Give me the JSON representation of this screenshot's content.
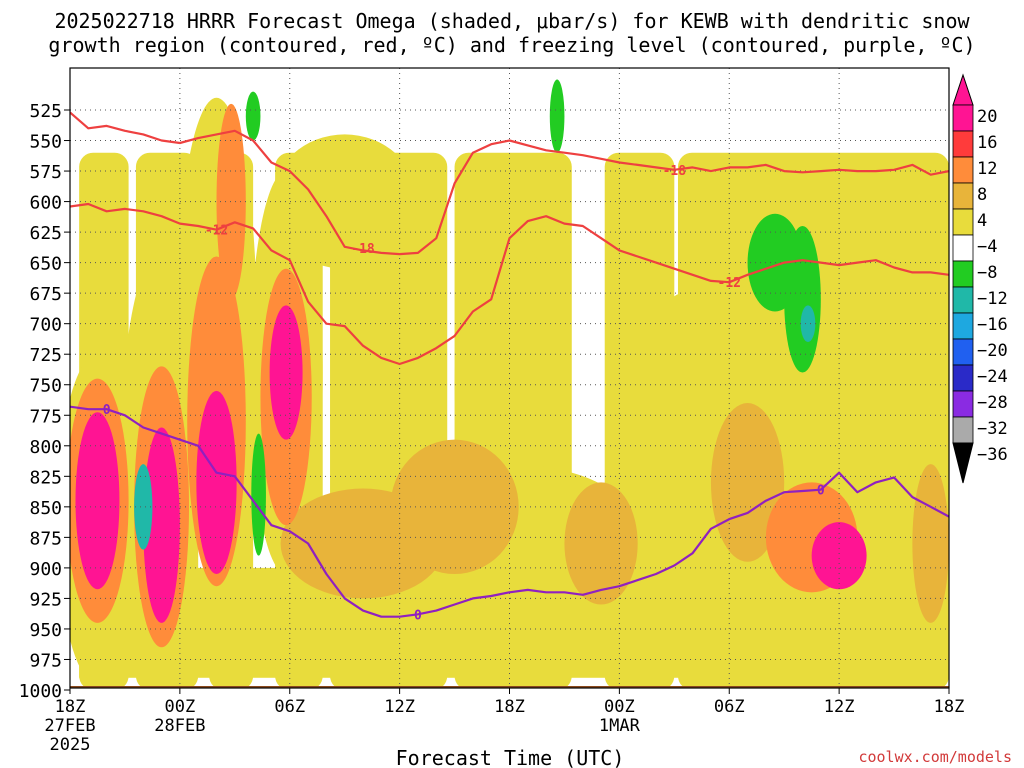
{
  "title_line1": "2025022718 HRRR Forecast Omega (shaded, μbar/s) for KEWB with dendritic snow",
  "title_line2": "growth region (contoured, red, ºC) and freezing level (contoured, purple, ºC)",
  "xlabel": "Forecast Time (UTC)",
  "credit": "coolwx.com/models",
  "chart_data": {
    "type": "heatmap",
    "title": "2025022718 HRRR Forecast Omega (shaded, μbar/s) for KEWB with dendritic snow growth region (contoured, red, ºC) and freezing level (contoured, purple, ºC)",
    "xlabel": "Forecast Time (UTC)",
    "ylabel": "",
    "x_range_hours": [
      0,
      48
    ],
    "y_range_hPa": [
      1000,
      500
    ],
    "x_ticks": [
      {
        "h": 0,
        "lines": [
          "18Z",
          "27FEB",
          "2025"
        ]
      },
      {
        "h": 6,
        "lines": [
          "00Z",
          "28FEB"
        ]
      },
      {
        "h": 12,
        "lines": [
          "06Z"
        ]
      },
      {
        "h": 18,
        "lines": [
          "12Z"
        ]
      },
      {
        "h": 24,
        "lines": [
          "18Z"
        ]
      },
      {
        "h": 30,
        "lines": [
          "00Z",
          "1MAR"
        ]
      },
      {
        "h": 36,
        "lines": [
          "06Z"
        ]
      },
      {
        "h": 42,
        "lines": [
          "12Z"
        ]
      },
      {
        "h": 48,
        "lines": [
          "18Z"
        ]
      }
    ],
    "y_ticks": [
      525,
      550,
      575,
      600,
      625,
      650,
      675,
      700,
      725,
      750,
      775,
      800,
      825,
      850,
      875,
      900,
      925,
      950,
      975,
      1000
    ],
    "grid": true,
    "colorbar": {
      "labels": [
        "20",
        "16",
        "12",
        "8",
        "4",
        "−4",
        "−8",
        "−12",
        "−16",
        "−20",
        "−24",
        "−28",
        "−32",
        "−36"
      ],
      "colors": [
        "#ff1493",
        "#ff3b3b",
        "#ff8c3a",
        "#e8b43a",
        "#e8dc3c",
        "#ffffff",
        "#22cc22",
        "#20b8a8",
        "#1ea8e0",
        "#2060f0",
        "#2a2ac8",
        "#8a2be2",
        "#aaaaaa",
        "#000000"
      ]
    },
    "contours": [
      {
        "name": "-12",
        "label_text": "-12",
        "color": "#ee4040",
        "points": [
          [
            0,
            604
          ],
          [
            1,
            602
          ],
          [
            2,
            608
          ],
          [
            3,
            606
          ],
          [
            4,
            608
          ],
          [
            5,
            612
          ],
          [
            6,
            618
          ],
          [
            7,
            620
          ],
          [
            8,
            623
          ],
          [
            9,
            617
          ],
          [
            10,
            622
          ],
          [
            11,
            640
          ],
          [
            12,
            648
          ],
          [
            13,
            682
          ],
          [
            14,
            700
          ],
          [
            15,
            702
          ],
          [
            16,
            718
          ],
          [
            17,
            728
          ],
          [
            18,
            733
          ],
          [
            19,
            728
          ],
          [
            20,
            720
          ],
          [
            21,
            710
          ],
          [
            22,
            690
          ],
          [
            23,
            680
          ],
          [
            24,
            630
          ],
          [
            25,
            616
          ],
          [
            26,
            612
          ],
          [
            27,
            618
          ],
          [
            28,
            620
          ],
          [
            29,
            630
          ],
          [
            30,
            640
          ],
          [
            31,
            645
          ],
          [
            32,
            650
          ],
          [
            33,
            655
          ],
          [
            34,
            660
          ],
          [
            35,
            665
          ],
          [
            36,
            666
          ],
          [
            37,
            660
          ],
          [
            38,
            655
          ],
          [
            39,
            650
          ],
          [
            40,
            648
          ],
          [
            41,
            650
          ],
          [
            42,
            652
          ],
          [
            43,
            650
          ],
          [
            44,
            648
          ],
          [
            45,
            654
          ],
          [
            46,
            658
          ],
          [
            47,
            658
          ],
          [
            48,
            660
          ]
        ],
        "label_at": [
          [
            8,
            623
          ],
          [
            36,
            666
          ]
        ]
      },
      {
        "name": "-18",
        "label_text": "-18",
        "color": "#ee4040",
        "points": [
          [
            0,
            527
          ],
          [
            1,
            540
          ],
          [
            2,
            538
          ],
          [
            3,
            542
          ],
          [
            4,
            545
          ],
          [
            5,
            550
          ],
          [
            6,
            552
          ],
          [
            7,
            548
          ],
          [
            8,
            545
          ],
          [
            9,
            542
          ],
          [
            10,
            550
          ],
          [
            11,
            568
          ],
          [
            12,
            575
          ],
          [
            13,
            590
          ],
          [
            14,
            612
          ],
          [
            15,
            637
          ],
          [
            16,
            640
          ],
          [
            17,
            642
          ],
          [
            18,
            643
          ],
          [
            19,
            642
          ],
          [
            20,
            630
          ],
          [
            21,
            585
          ],
          [
            22,
            560
          ],
          [
            23,
            553
          ],
          [
            24,
            550
          ],
          [
            25,
            554
          ],
          [
            26,
            558
          ],
          [
            27,
            560
          ],
          [
            28,
            562
          ],
          [
            29,
            565
          ],
          [
            30,
            568
          ],
          [
            31,
            570
          ],
          [
            32,
            572
          ],
          [
            33,
            574
          ],
          [
            34,
            572
          ],
          [
            35,
            575
          ],
          [
            36,
            572
          ],
          [
            37,
            572
          ],
          [
            38,
            570
          ],
          [
            39,
            575
          ],
          [
            40,
            576
          ],
          [
            41,
            575
          ],
          [
            42,
            574
          ],
          [
            43,
            575
          ],
          [
            44,
            575
          ],
          [
            45,
            574
          ],
          [
            46,
            570
          ],
          [
            47,
            578
          ],
          [
            48,
            575
          ]
        ],
        "label_at": [
          [
            16,
            638
          ],
          [
            33,
            574
          ]
        ]
      },
      {
        "name": "0",
        "label_text": "0",
        "color": "#9020c0",
        "points": [
          [
            0,
            768
          ],
          [
            1,
            770
          ],
          [
            2,
            770
          ],
          [
            3,
            775
          ],
          [
            4,
            785
          ],
          [
            5,
            790
          ],
          [
            6,
            795
          ],
          [
            7,
            800
          ],
          [
            8,
            822
          ],
          [
            9,
            825
          ],
          [
            10,
            845
          ],
          [
            11,
            865
          ],
          [
            12,
            870
          ],
          [
            13,
            880
          ],
          [
            14,
            905
          ],
          [
            15,
            925
          ],
          [
            16,
            935
          ],
          [
            17,
            940
          ],
          [
            18,
            940
          ],
          [
            19,
            938
          ],
          [
            20,
            935
          ],
          [
            21,
            930
          ],
          [
            22,
            925
          ],
          [
            23,
            923
          ],
          [
            24,
            920
          ],
          [
            25,
            918
          ],
          [
            26,
            920
          ],
          [
            27,
            920
          ],
          [
            28,
            922
          ],
          [
            29,
            918
          ],
          [
            30,
            915
          ],
          [
            31,
            910
          ],
          [
            32,
            905
          ],
          [
            33,
            898
          ],
          [
            34,
            888
          ],
          [
            35,
            868
          ],
          [
            36,
            860
          ],
          [
            37,
            855
          ],
          [
            38,
            845
          ],
          [
            39,
            838
          ],
          [
            40,
            837
          ],
          [
            41,
            836
          ],
          [
            42,
            822
          ],
          [
            43,
            838
          ],
          [
            44,
            830
          ],
          [
            45,
            826
          ],
          [
            46,
            842
          ],
          [
            47,
            850
          ],
          [
            48,
            858
          ]
        ],
        "label_at": [
          [
            2,
            770
          ],
          [
            19,
            938
          ],
          [
            41,
            836
          ]
        ]
      }
    ],
    "omega_cells": [
      {
        "t": 1.5,
        "p": 845,
        "rt": 1.2,
        "rp": 145,
        "v": 22
      },
      {
        "t": 1.5,
        "p": 845,
        "rt": 1.7,
        "rp": 200,
        "v": 14
      },
      {
        "t": 1.5,
        "p": 860,
        "rt": 2.2,
        "rp": 270,
        "v": 6
      },
      {
        "t": 5.0,
        "p": 865,
        "rt": 1.0,
        "rp": 160,
        "v": 22
      },
      {
        "t": 5.0,
        "p": 850,
        "rt": 1.5,
        "rp": 230,
        "v": 14
      },
      {
        "t": 5.0,
        "p": 800,
        "rt": 2.2,
        "rp": 320,
        "v": 6
      },
      {
        "t": 8.0,
        "p": 830,
        "rt": 1.1,
        "rp": 150,
        "v": 22
      },
      {
        "t": 8.0,
        "p": 780,
        "rt": 1.6,
        "rp": 270,
        "v": 14
      },
      {
        "t": 8.0,
        "p": 700,
        "rt": 2.2,
        "rp": 370,
        "v": 6
      },
      {
        "t": 8.8,
        "p": 600,
        "rt": 0.8,
        "rp": 160,
        "v": 14
      },
      {
        "t": 11.8,
        "p": 740,
        "rt": 0.9,
        "rp": 110,
        "v": 22
      },
      {
        "t": 11.8,
        "p": 760,
        "rt": 1.4,
        "rp": 210,
        "v": 14
      },
      {
        "t": 11.8,
        "p": 740,
        "rt": 2.0,
        "rp": 330,
        "v": 6
      },
      {
        "t": 16.0,
        "p": 880,
        "rt": 4.5,
        "rp": 90,
        "v": 10
      },
      {
        "t": 21.0,
        "p": 850,
        "rt": 3.5,
        "rp": 110,
        "v": 10
      },
      {
        "t": 24.0,
        "p": 750,
        "rt": 3.0,
        "rp": 240,
        "v": 6
      },
      {
        "t": 24.0,
        "p": 870,
        "rt": 7.0,
        "rp": 110,
        "v": 6
      },
      {
        "t": 15.0,
        "p": 600,
        "rt": 4.0,
        "rp": 110,
        "v": 6
      },
      {
        "t": 29.0,
        "p": 880,
        "rt": 2.0,
        "rp": 100,
        "v": 10
      },
      {
        "t": 33.5,
        "p": 800,
        "rt": 2.5,
        "rp": 250,
        "v": 6
      },
      {
        "t": 37.0,
        "p": 830,
        "rt": 2.0,
        "rp": 130,
        "v": 10
      },
      {
        "t": 40.5,
        "p": 875,
        "rt": 2.5,
        "rp": 90,
        "v": 14
      },
      {
        "t": 42.0,
        "p": 890,
        "rt": 1.5,
        "rp": 55,
        "v": 22
      },
      {
        "t": 41.0,
        "p": 860,
        "rt": 4.0,
        "rp": 150,
        "v": 6
      },
      {
        "t": 47.0,
        "p": 880,
        "rt": 1.0,
        "rp": 130,
        "v": 10
      }
    ],
    "neg_cells": [
      {
        "t": 4.0,
        "p": 850,
        "rt": 0.5,
        "rp": 70,
        "v": -10
      },
      {
        "t": 10.3,
        "p": 840,
        "rt": 0.4,
        "rp": 100,
        "v": -6
      },
      {
        "t": 38.5,
        "p": 650,
        "rt": 1.5,
        "rp": 80,
        "v": -6
      },
      {
        "t": 40.0,
        "p": 680,
        "rt": 1.0,
        "rp": 120,
        "v": -7
      },
      {
        "t": 40.3,
        "p": 700,
        "rt": 0.4,
        "rp": 30,
        "v": -11
      },
      {
        "t": 10.0,
        "p": 530,
        "rt": 0.4,
        "rp": 40,
        "v": -6
      },
      {
        "t": 26.6,
        "p": 530,
        "rt": 0.4,
        "rp": 60,
        "v": -6
      }
    ]
  }
}
